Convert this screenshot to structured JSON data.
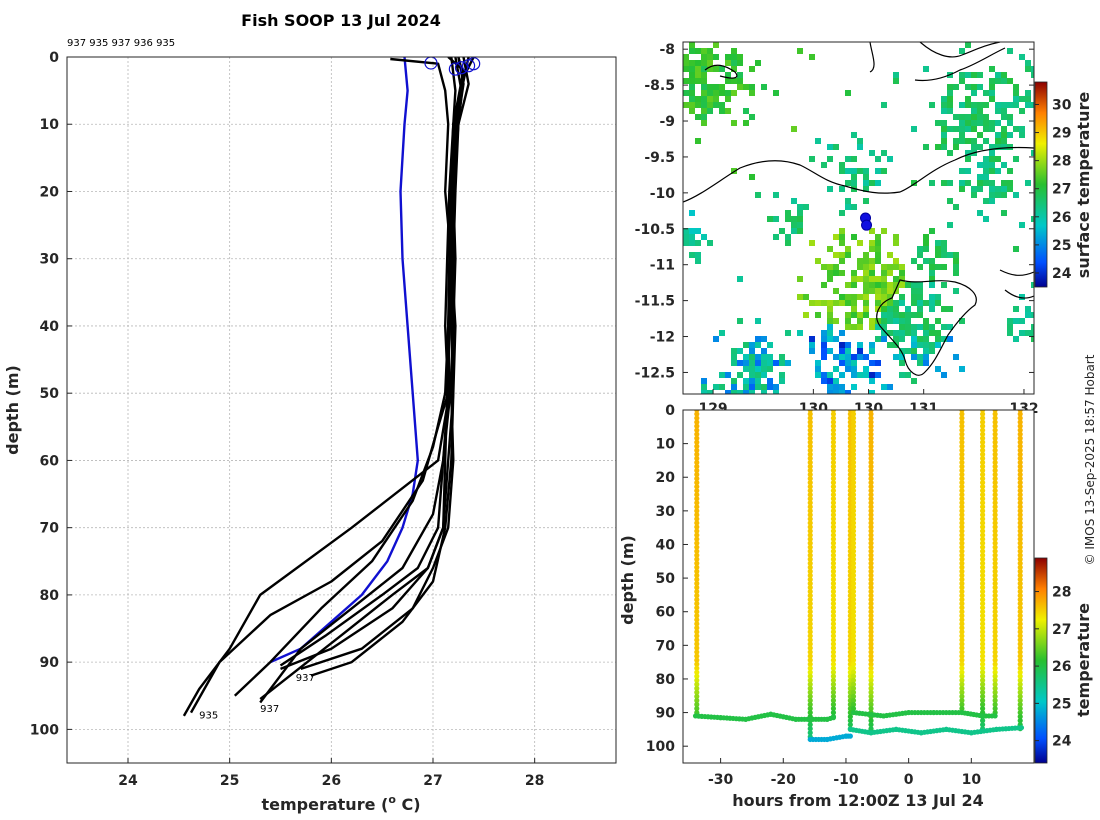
{
  "title": "Fish SOOP 13 Jul 2024",
  "credit": "© IMOS 13-Sep-2025 18:57 Hobart",
  "chart_data": [
    {
      "id": "profiles",
      "type": "line",
      "xlabel": "temperature (° C)",
      "xlabel_main": "temperature (",
      "xlabel_sup": "o",
      "xlabel_end": " C)",
      "ylabel": "depth (m)",
      "xlim": [
        23.4,
        28.8
      ],
      "ylim": [
        0,
        105
      ],
      "xticks": [
        24,
        25,
        26,
        27,
        28
      ],
      "yticks": [
        0,
        10,
        20,
        30,
        40,
        50,
        60,
        70,
        80,
        90,
        100
      ],
      "top_ids_text": "937 935 937 936 935",
      "bottom_labels": [
        {
          "text": "935",
          "temp": 24.7,
          "depth": 97.8
        },
        {
          "text": "937",
          "temp": 25.3,
          "depth": 96.8
        },
        {
          "text": "937",
          "temp": 25.65,
          "depth": 92.2
        }
      ],
      "surface_markers": [
        {
          "temp": 26.98,
          "depth": 0.3
        },
        {
          "temp": 27.22,
          "depth": 1.2
        },
        {
          "temp": 27.28,
          "depth": 1.0
        },
        {
          "temp": 27.35,
          "depth": 0.7
        },
        {
          "temp": 27.4,
          "depth": 0.4
        }
      ],
      "series": [
        {
          "name": "blue",
          "color": "#1010d0",
          "x": [
            26.72,
            26.75,
            26.72,
            26.68,
            26.7,
            26.75,
            26.8,
            26.85,
            26.8,
            26.7,
            26.55,
            26.3,
            26.0,
            25.7,
            25.4
          ],
          "y": [
            0,
            5,
            10,
            20,
            30,
            40,
            50,
            60,
            65,
            70,
            75,
            80,
            84,
            88,
            90
          ]
        },
        {
          "name": "p1",
          "color": "#000000",
          "x": [
            26.58,
            27.05,
            27.12,
            27.15,
            27.12,
            27.18,
            27.15,
            27.16,
            27.05,
            26.2,
            25.3,
            25.0,
            24.7,
            24.55
          ],
          "y": [
            0.3,
            1,
            5,
            10,
            20,
            30,
            40,
            50,
            60,
            70,
            80,
            88,
            94,
            98
          ]
        },
        {
          "name": "p2",
          "color": "#000000",
          "x": [
            27.15,
            27.3,
            27.2,
            27.18,
            27.2,
            27.16,
            27.15,
            27.05,
            26.9,
            26.5,
            26.0,
            25.4,
            24.9,
            24.62
          ],
          "y": [
            0,
            2,
            10,
            20,
            30,
            40,
            50,
            55,
            63,
            72,
            78,
            83,
            90,
            97.5
          ]
        },
        {
          "name": "p3",
          "color": "#000000",
          "x": [
            27.25,
            27.3,
            27.22,
            27.18,
            27.16,
            27.15,
            27.12,
            27.0,
            26.8,
            26.4,
            25.9,
            25.4,
            25.05
          ],
          "y": [
            0,
            3,
            10,
            20,
            30,
            40,
            50,
            58,
            66,
            75,
            82,
            90,
            95
          ]
        },
        {
          "name": "p4",
          "color": "#000000",
          "x": [
            27.3,
            27.35,
            27.25,
            27.2,
            27.18,
            27.2,
            27.17,
            27.1,
            27.0,
            26.7,
            26.2,
            25.7,
            25.3
          ],
          "y": [
            0,
            4,
            10,
            20,
            30,
            40,
            50,
            60,
            68,
            76,
            82,
            88,
            96
          ]
        },
        {
          "name": "p5",
          "color": "#000000",
          "x": [
            27.35,
            27.28,
            27.22,
            27.2,
            27.18,
            27.22,
            27.2,
            27.15,
            27.1,
            26.95,
            26.6,
            26.0,
            25.5
          ],
          "y": [
            0,
            5,
            10,
            20,
            30,
            40,
            50,
            60,
            70,
            76,
            82,
            88,
            91
          ]
        },
        {
          "name": "p6",
          "color": "#000000",
          "x": [
            27.4,
            27.3,
            27.25,
            27.22,
            27.2,
            27.18,
            27.2,
            27.18,
            27.12,
            27.0,
            26.7,
            26.2,
            25.8
          ],
          "y": [
            0,
            3,
            10,
            20,
            30,
            40,
            50,
            60,
            70,
            78,
            84,
            90,
            92
          ]
        },
        {
          "name": "p7",
          "color": "#000000",
          "x": [
            27.18,
            27.22,
            27.2,
            27.16,
            27.14,
            27.12,
            27.15,
            27.1,
            27.05,
            26.85,
            26.5,
            25.95,
            25.5
          ],
          "y": [
            0,
            5,
            10,
            20,
            30,
            40,
            50,
            60,
            70,
            76,
            80,
            86,
            90.5
          ]
        },
        {
          "name": "p8",
          "color": "#000000",
          "x": [
            27.25,
            27.3,
            27.24,
            27.2,
            27.22,
            27.2,
            27.18,
            27.2,
            27.15,
            27.0,
            26.8,
            26.3,
            25.7
          ],
          "y": [
            0,
            4,
            10,
            20,
            30,
            40,
            50,
            60,
            70,
            76,
            82,
            88,
            91
          ]
        },
        {
          "name": "p9",
          "color": "#000000",
          "x": [
            27.22,
            27.28,
            27.2,
            27.18,
            27.17,
            27.16,
            27.14,
            27.12,
            27.1,
            26.95,
            26.6,
            26.1,
            25.3
          ],
          "y": [
            0,
            5,
            10,
            20,
            30,
            40,
            50,
            60,
            70,
            76,
            80,
            86,
            95.5
          ]
        }
      ]
    },
    {
      "id": "map",
      "type": "heatmap",
      "ylim": [
        -12.8,
        -7.9
      ],
      "xlim": [
        128.9,
        132.4
      ],
      "yticks": [
        -8,
        -8.5,
        -9,
        -9.5,
        -10,
        -10.5,
        -11,
        -11.5,
        -12,
        -12.5
      ],
      "ytick_labels": [
        "-8",
        "-8.5",
        "-9",
        "-9.5",
        "-10",
        "-10.5",
        "-11",
        "-11.5",
        "-12",
        "-12.5"
      ],
      "xticks": [
        129.2,
        130.2,
        130.75,
        131.3,
        132.3
      ],
      "xtick_labels": [
        "129",
        "130",
        "130",
        "131",
        "132"
      ],
      "colorbar_label": "surface temperature",
      "colorbar_range": [
        23.5,
        30.8
      ],
      "colorbar_ticks": [
        24,
        25,
        26,
        27,
        28,
        29,
        30
      ],
      "ship_positions": [
        {
          "lon": 130.72,
          "lat": -10.35
        },
        {
          "lon": 130.73,
          "lat": -10.45
        }
      ]
    },
    {
      "id": "timeseries",
      "type": "scatter",
      "xlabel": "hours from 12:00Z 13 Jul 24",
      "ylabel": "depth (m)",
      "xlim": [
        -36,
        20
      ],
      "ylim": [
        0,
        105
      ],
      "xticks": [
        -30,
        -20,
        -10,
        0,
        10
      ],
      "yticks": [
        0,
        10,
        20,
        30,
        40,
        50,
        60,
        70,
        80,
        90,
        100
      ],
      "colorbar_label": "temperature",
      "colorbar_range": [
        23.4,
        28.9
      ],
      "colorbar_ticks": [
        24,
        25,
        26,
        27,
        28
      ],
      "casts": [
        {
          "hour": -33.8,
          "max_depth": 91,
          "surface_temp": 27.7
        },
        {
          "hour": -15.7,
          "max_depth": 98,
          "surface_temp": 27.6
        },
        {
          "hour": -12.0,
          "max_depth": 92,
          "surface_temp": 27.5
        },
        {
          "hour": -9.3,
          "max_depth": 96,
          "surface_temp": 27.6
        },
        {
          "hour": -8.8,
          "max_depth": 90,
          "surface_temp": 27.5
        },
        {
          "hour": -6.0,
          "max_depth": 95,
          "surface_temp": 27.7
        },
        {
          "hour": 8.5,
          "max_depth": 90,
          "surface_temp": 27.6
        },
        {
          "hour": 11.8,
          "max_depth": 96,
          "surface_temp": 27.5
        },
        {
          "hour": 13.8,
          "max_depth": 91,
          "surface_temp": 27.6
        },
        {
          "hour": 17.8,
          "max_depth": 95,
          "surface_temp": 27.7
        }
      ],
      "bottom_lines": [
        {
          "hours": [
            -34,
            -30,
            -26,
            -22,
            -18,
            -15.7,
            -13,
            -12
          ],
          "depths": [
            91,
            91.5,
            92,
            90.5,
            92,
            92,
            92,
            91.5
          ],
          "temp": 26.0
        },
        {
          "hours": [
            -15.7,
            -13,
            -10,
            -9.3
          ],
          "depths": [
            98,
            98,
            97,
            97
          ],
          "temp": 24.8
        },
        {
          "hours": [
            -9.3,
            -6,
            -2,
            2,
            6,
            10,
            14,
            18
          ],
          "depths": [
            95,
            96,
            95,
            96,
            95,
            96,
            95,
            94.5
          ],
          "temp": 25.5
        },
        {
          "hours": [
            -8.8,
            -4,
            0,
            4,
            8.5,
            11.8,
            13.8
          ],
          "depths": [
            90,
            91,
            90,
            90,
            90,
            91,
            91
          ],
          "temp": 26.0
        }
      ]
    }
  ]
}
